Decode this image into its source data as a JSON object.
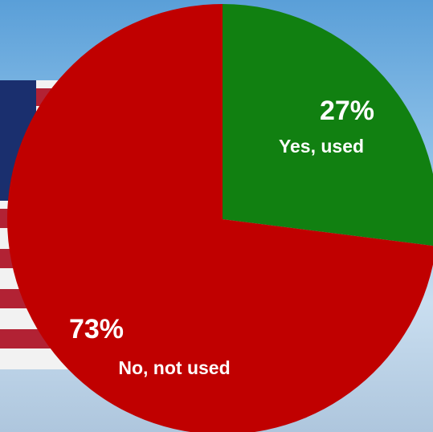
{
  "chart_data": {
    "type": "pie",
    "categories": [
      "Yes, used",
      "No, not used"
    ],
    "values": [
      27,
      73
    ],
    "value_labels": [
      "27%",
      "73%"
    ],
    "colors": [
      "#118011",
      "#c00000"
    ]
  }
}
